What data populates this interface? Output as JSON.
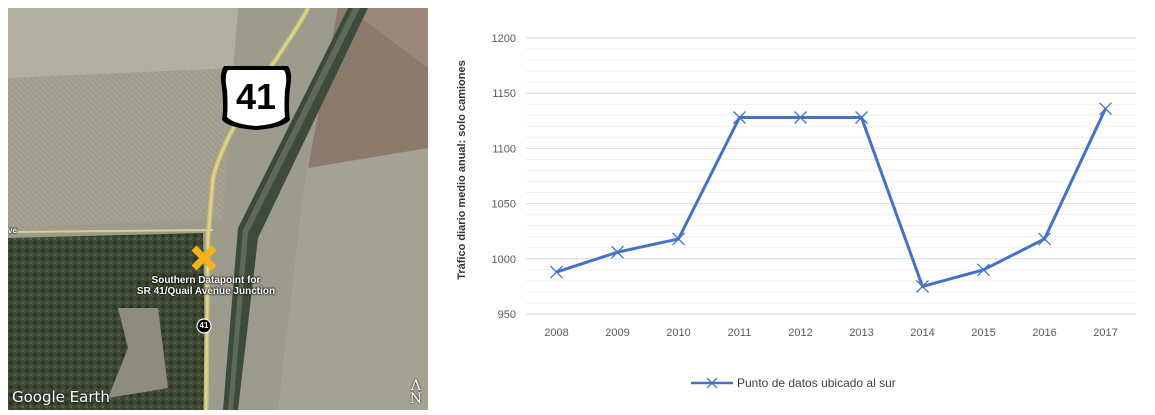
{
  "map": {
    "shield_number": "41",
    "route_marker": "41",
    "datapoint_label_line1": "Southern Datapoint for",
    "datapoint_label_line2": "SR 41/Quail Avenue Junction",
    "logo": "Google Earth",
    "north_arrow": "N",
    "edge_label": "ve"
  },
  "chart_data": {
    "type": "line",
    "categories": [
      "2008",
      "2009",
      "2010",
      "2011",
      "2012",
      "2013",
      "2014",
      "2015",
      "2016",
      "2017"
    ],
    "series": [
      {
        "name": "Punto de datos ubicado al sur",
        "values": [
          988,
          1006,
          1018,
          1128,
          1128,
          1128,
          975,
          990,
          1018,
          1136
        ],
        "color": "#4472C4",
        "marker": "x"
      }
    ],
    "ylabel": "Tráfico diario medio anual: solo camiones",
    "ylim": [
      950,
      1200
    ],
    "yticks": [
      950,
      1000,
      1050,
      1100,
      1150,
      1200
    ],
    "grid": true,
    "legend_position": "bottom"
  }
}
